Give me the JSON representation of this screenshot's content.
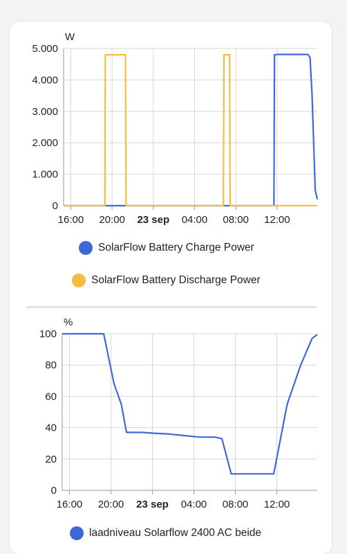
{
  "colors": {
    "charge": "#3f68d6",
    "discharge": "#f2bd41",
    "soc": "#3f68d6",
    "grid": "#d6d6d6"
  },
  "chart_data": [
    {
      "type": "line",
      "ylabel": "W",
      "ylim": [
        0,
        5000
      ],
      "yticks": [
        0,
        1000,
        2000,
        3000,
        4000,
        5000
      ],
      "ytick_labels": [
        "0",
        "1.000",
        "2.000",
        "3.000",
        "4.000",
        "5.000"
      ],
      "xlim": [
        -0.7,
        23.9
      ],
      "xticks": [
        0,
        4,
        8,
        12,
        16,
        20
      ],
      "xtick_labels": [
        "16:00",
        "20:00",
        "23 sep",
        "04:00",
        "08:00",
        "12:00"
      ],
      "legend_position": "bottom",
      "grid": true,
      "series": [
        {
          "name": "SolarFlow Battery Charge Power",
          "color_key": "charge",
          "x": [
            -0.7,
            19.7,
            19.75,
            20.0,
            23.0,
            23.2,
            23.4,
            23.6,
            23.7,
            23.9
          ],
          "y": [
            0,
            0,
            4800,
            4810,
            4810,
            4700,
            3500,
            1500,
            500,
            200
          ]
        },
        {
          "name": "SolarFlow Battery Discharge Power",
          "color_key": "discharge",
          "x": [
            -0.7,
            3.3,
            3.35,
            5.3,
            5.35,
            14.8,
            14.85,
            15.4,
            15.45,
            19.7,
            19.75,
            23.9
          ],
          "y": [
            0,
            0,
            4800,
            4800,
            0,
            0,
            4800,
            4800,
            0,
            0,
            0,
            0
          ]
        }
      ]
    },
    {
      "type": "line",
      "ylabel": "%",
      "ylim": [
        0,
        100
      ],
      "yticks": [
        0,
        20,
        40,
        60,
        80,
        100
      ],
      "ytick_labels": [
        "0",
        "20",
        "40",
        "60",
        "80",
        "100"
      ],
      "xlim": [
        -0.7,
        23.9
      ],
      "xticks": [
        0,
        4,
        8,
        12,
        16,
        20
      ],
      "xtick_labels": [
        "16:00",
        "20:00",
        "23 sep",
        "04:00",
        "08:00",
        "12:00"
      ],
      "legend_position": "bottom",
      "grid": true,
      "series": [
        {
          "name": "laadniveau Solarflow 2400 AC beide",
          "color_key": "soc",
          "x": [
            -0.7,
            3.3,
            4.3,
            5.0,
            5.5,
            7.0,
            8.0,
            9.5,
            11.0,
            12.5,
            14.0,
            14.7,
            15.6,
            16.2,
            19.7,
            21.0,
            22.3,
            23.4,
            23.8,
            23.9
          ],
          "y": [
            100,
            100,
            68,
            55,
            37,
            37,
            36.5,
            36,
            35,
            34,
            34,
            33,
            10.5,
            10.5,
            10.5,
            55,
            80,
            97,
            99,
            99.5
          ]
        }
      ]
    }
  ]
}
